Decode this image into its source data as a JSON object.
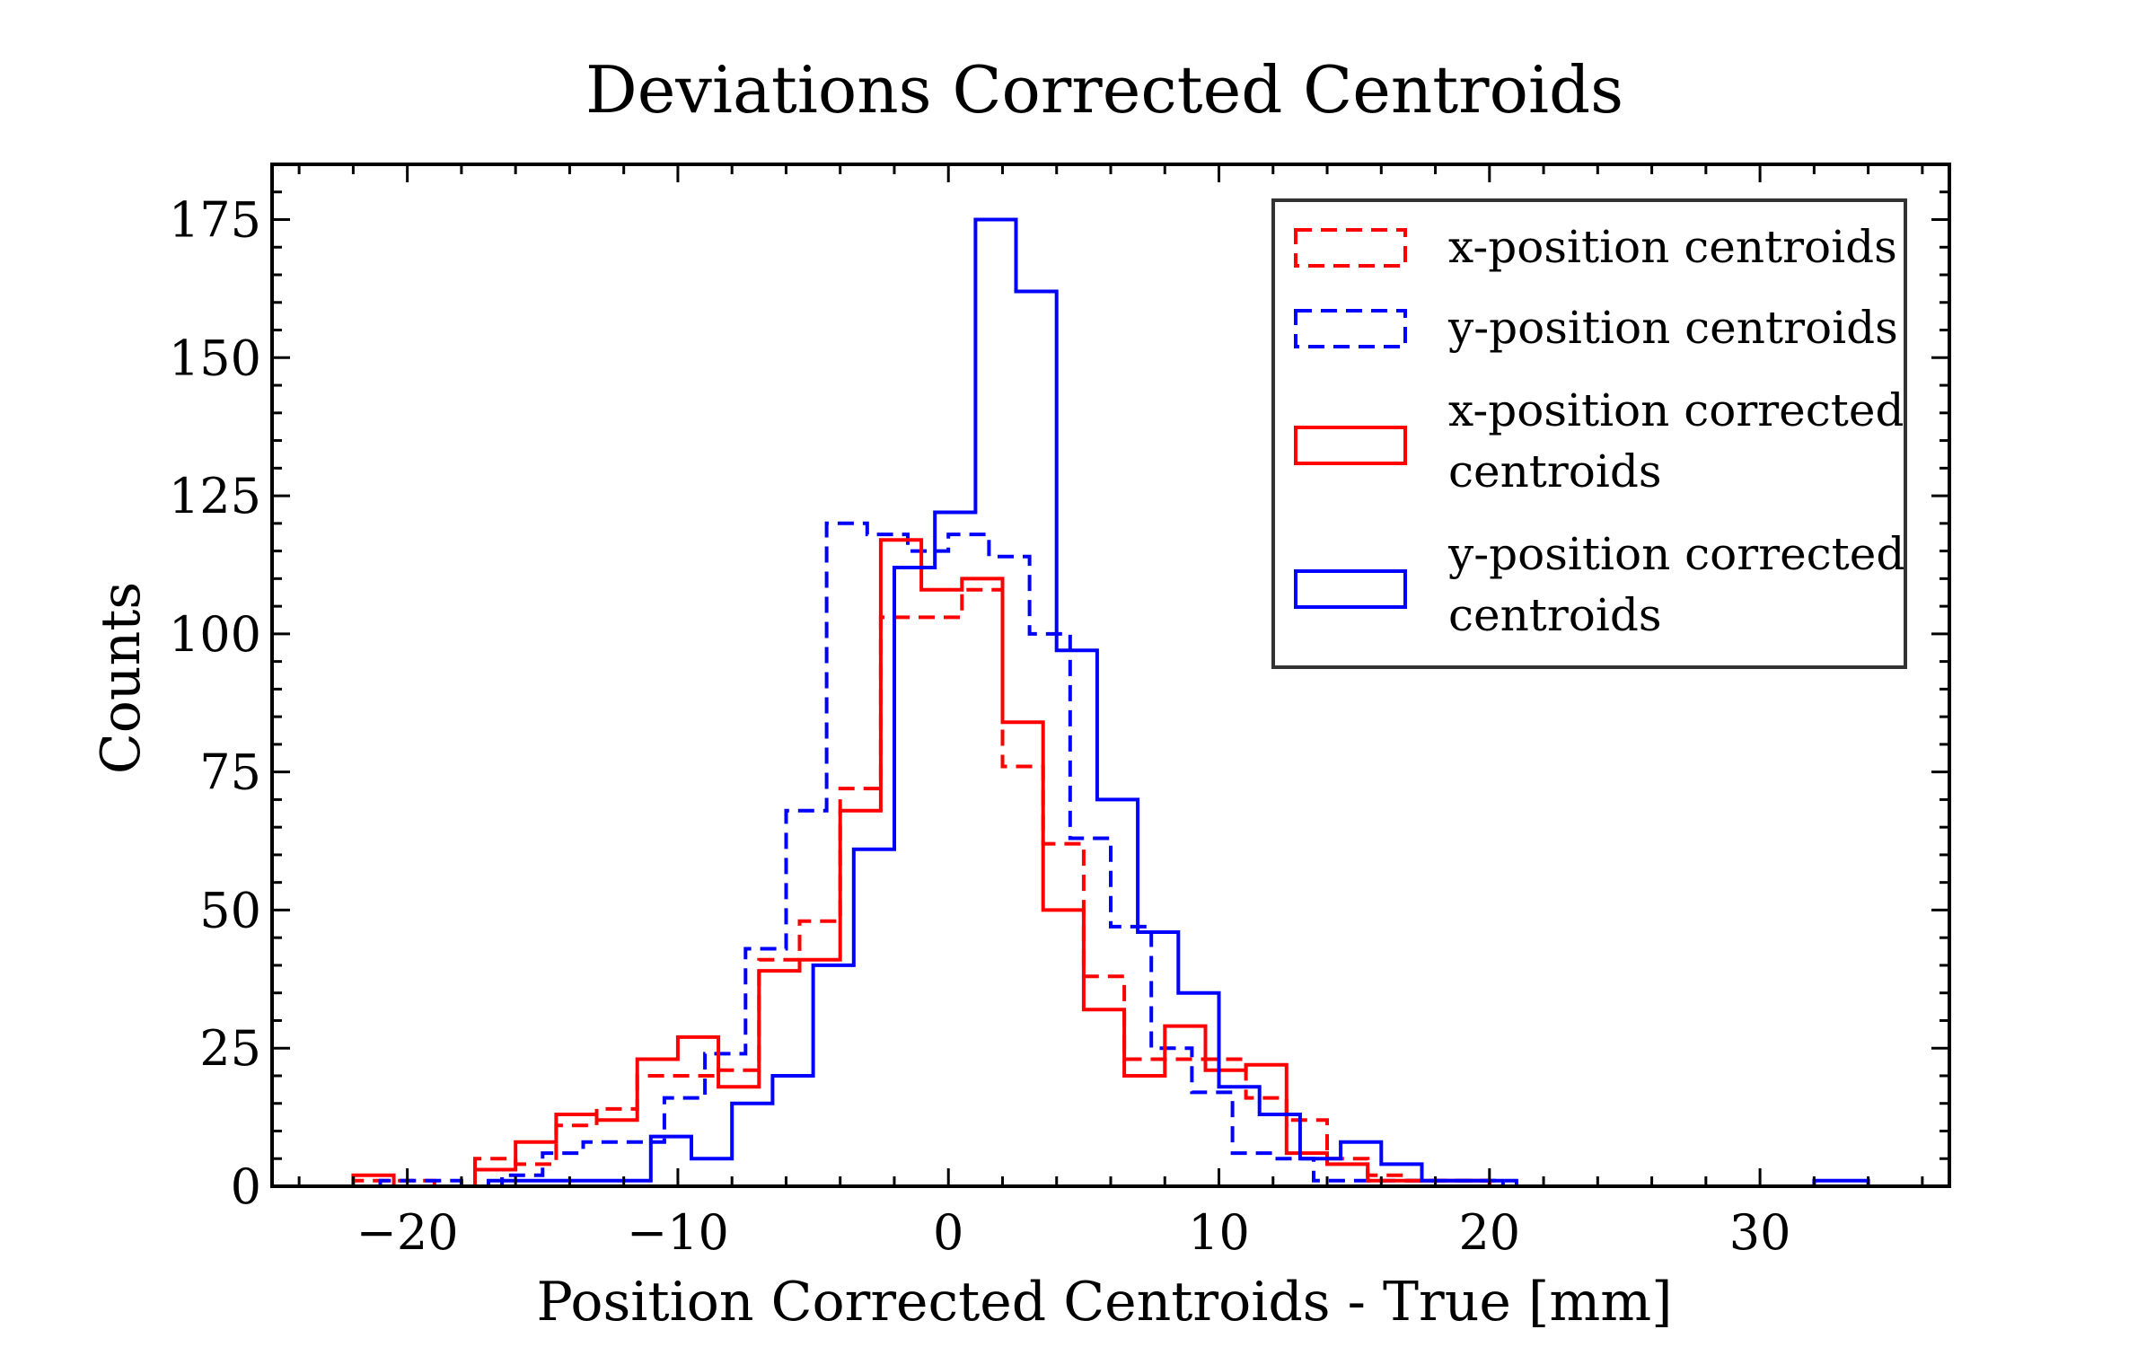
{
  "chart_data": {
    "type": "histogram",
    "title": "Deviations Corrected Centroids",
    "xlabel": "Position Corrected Centroids - True [mm]",
    "ylabel": "Counts",
    "xlim": [
      -25,
      37
    ],
    "ylim": [
      0,
      185
    ],
    "xticks": [
      -20,
      -10,
      0,
      10,
      20,
      30
    ],
    "xtick_labels": [
      "−20",
      "−10",
      "0",
      "10",
      "20",
      "30"
    ],
    "yticks": [
      0,
      25,
      50,
      75,
      100,
      125,
      150,
      175
    ],
    "ytick_labels": [
      "0",
      "25",
      "50",
      "75",
      "100",
      "125",
      "150",
      "175"
    ],
    "grid": false,
    "legend_position": "top-right",
    "series": [
      {
        "name": "x-position centroids",
        "color": "#ff0000",
        "style": "dashed",
        "bin_edges": [
          -22.0,
          -20.5,
          -19.0,
          -17.5,
          -16.0,
          -14.5,
          -13.0,
          -11.5,
          -10.0,
          -8.5,
          -7.0,
          -5.5,
          -4.0,
          -2.5,
          -1.0,
          0.5,
          2.0,
          3.5,
          5.0,
          6.5,
          8.0,
          9.5,
          11.0,
          12.5,
          14.0,
          15.5,
          17.0,
          18.5,
          20.0
        ],
        "counts": [
          1,
          1,
          0,
          5,
          4,
          11,
          14,
          20,
          20,
          21,
          41,
          48,
          72,
          103,
          103,
          108,
          76,
          62,
          38,
          23,
          23,
          23,
          16,
          12,
          5,
          2,
          1,
          1
        ]
      },
      {
        "name": "y-position centroids",
        "color": "#0000ff",
        "style": "dashed",
        "bin_edges": [
          -21.0,
          -19.5,
          -18.0,
          -16.5,
          -15.0,
          -13.5,
          -12.0,
          -10.5,
          -9.0,
          -7.5,
          -6.0,
          -4.5,
          -3.0,
          -1.5,
          0.0,
          1.5,
          3.0,
          4.5,
          6.0,
          7.5,
          9.0,
          10.5,
          12.0,
          13.5,
          15.0,
          16.5,
          18.0,
          19.5,
          21.0
        ],
        "counts": [
          1,
          1,
          0,
          2,
          6,
          8,
          8,
          16,
          24,
          43,
          68,
          120,
          118,
          115,
          118,
          114,
          100,
          63,
          47,
          25,
          17,
          6,
          5,
          1,
          1,
          1,
          1,
          1
        ]
      },
      {
        "name": "x-position corrected centroids",
        "color": "#ff0000",
        "style": "solid",
        "bin_edges": [
          -22.0,
          -20.5,
          -19.0,
          -17.5,
          -16.0,
          -14.5,
          -13.0,
          -11.5,
          -10.0,
          -8.5,
          -7.0,
          -5.5,
          -4.0,
          -2.5,
          -1.0,
          0.5,
          2.0,
          3.5,
          5.0,
          6.5,
          8.0,
          9.5,
          11.0,
          12.5,
          14.0,
          15.5,
          17.0,
          18.5,
          20.0
        ],
        "counts": [
          2,
          0,
          0,
          3,
          8,
          13,
          12,
          23,
          27,
          18,
          39,
          41,
          68,
          117,
          108,
          110,
          84,
          50,
          32,
          20,
          29,
          21,
          22,
          6,
          4,
          1,
          1,
          1
        ]
      },
      {
        "name": "y-position corrected centroids",
        "color": "#0000ff",
        "style": "solid",
        "bin_edges": [
          -17.0,
          -15.5,
          -14.0,
          -12.5,
          -11.0,
          -9.5,
          -8.0,
          -6.5,
          -5.0,
          -3.5,
          -2.0,
          -0.5,
          1.0,
          2.5,
          4.0,
          5.5,
          7.0,
          8.5,
          10.0,
          11.5,
          13.0,
          14.5,
          16.0,
          17.5,
          19.0,
          20.5
        ],
        "counts": [
          1,
          1,
          1,
          1,
          9,
          5,
          15,
          20,
          40,
          61,
          112,
          122,
          175,
          162,
          97,
          70,
          46,
          35,
          18,
          13,
          5,
          8,
          4,
          1,
          1
        ],
        "outlier_bin_edges": [
          32.0,
          34.0
        ],
        "outlier_counts": [
          1
        ]
      }
    ],
    "legend": [
      {
        "lines": [
          "x-position centroids"
        ],
        "color": "#ff0000",
        "style": "dashed"
      },
      {
        "lines": [
          "y-position centroids"
        ],
        "color": "#0000ff",
        "style": "dashed"
      },
      {
        "lines": [
          "x-position corrected",
          "centroids"
        ],
        "color": "#ff0000",
        "style": "solid"
      },
      {
        "lines": [
          "y-position corrected",
          "centroids"
        ],
        "color": "#0000ff",
        "style": "solid"
      }
    ]
  }
}
